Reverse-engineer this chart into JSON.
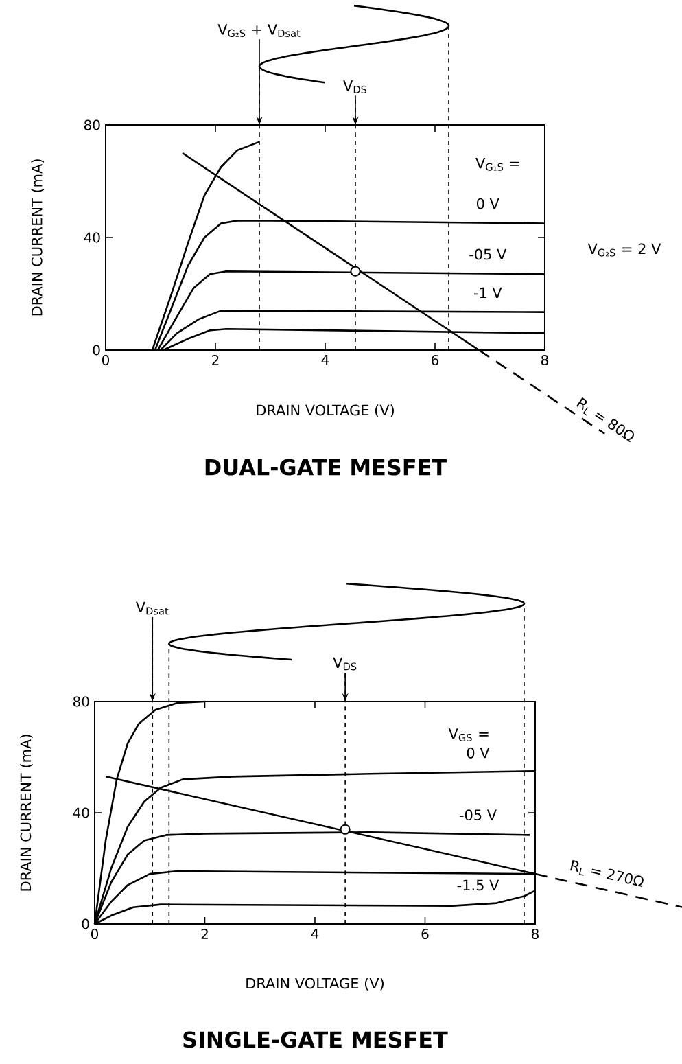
{
  "chart_data": [
    {
      "type": "line",
      "title": "DUAL-GATE MESFET",
      "xlabel": "DRAIN VOLTAGE (V)",
      "ylabel": "DRAIN CURRENT (mA)",
      "xlim": [
        0,
        8
      ],
      "ylim": [
        0,
        80
      ],
      "xticks": [
        0,
        2,
        4,
        6,
        8
      ],
      "yticks": [
        0,
        40,
        80
      ],
      "series": [
        {
          "color": "#000000",
          "x": [
            0.85,
            1.2,
            1.5,
            1.8,
            2.1,
            2.4,
            2.8
          ],
          "values": [
            0,
            20,
            38,
            55,
            65,
            71,
            74
          ]
        },
        {
          "name": "0 V",
          "color": "#000000",
          "x": [
            0.9,
            1.2,
            1.5,
            1.8,
            2.1,
            2.4,
            3,
            8
          ],
          "values": [
            0,
            15,
            30,
            40,
            45,
            46,
            46,
            45
          ]
        },
        {
          "name": "-05 V",
          "color": "#000000",
          "x": [
            0.95,
            1.3,
            1.6,
            1.9,
            2.2,
            8
          ],
          "values": [
            0,
            12,
            22,
            27,
            28,
            27
          ]
        },
        {
          "name": "-1 V",
          "color": "#000000",
          "x": [
            1.0,
            1.3,
            1.7,
            2.1,
            8
          ],
          "values": [
            0,
            6,
            11,
            14,
            13.5
          ]
        },
        {
          "color": "#000000",
          "x": [
            1.05,
            1.5,
            1.9,
            2.2,
            8
          ],
          "values": [
            0,
            4,
            7,
            7.5,
            6
          ]
        },
        {
          "color": "#000000",
          "x": [
            1.4,
            6.8
          ],
          "values": [
            70,
            0
          ]
        },
        {
          "type": "scatter",
          "marker": "circle",
          "color": "#000000",
          "x": [
            4.55
          ],
          "values": [
            28
          ]
        }
      ],
      "ref_lines": [
        {
          "axis": "x",
          "value": 2.8,
          "label": "V$_{G₂S}$ + V$_{Dsat}$",
          "line_style": "dashed"
        },
        {
          "axis": "x",
          "value": 4.55,
          "label": "V$_{DS}$",
          "line_style": "dashed"
        },
        {
          "axis": "x",
          "value": 6.25,
          "line_style": "dashed"
        }
      ],
      "annotations": [
        "V$_{G₁S}$ =",
        "V$_{G₂S}$ = 2 V",
        "R$_{L}$ = 80Ω"
      ]
    },
    {
      "type": "line",
      "title": "SINGLE-GATE MESFET",
      "xlabel": "DRAIN VOLTAGE (V)",
      "ylabel": "DRAIN CURRENT (mA)",
      "xlim": [
        0,
        8
      ],
      "ylim": [
        0,
        80
      ],
      "xticks": [
        0,
        2,
        4,
        6,
        8
      ],
      "yticks": [
        0,
        40,
        80
      ],
      "series": [
        {
          "color": "#000000",
          "x": [
            0,
            0.2,
            0.4,
            0.6,
            0.8,
            1.1,
            1.5,
            2
          ],
          "values": [
            0,
            30,
            52,
            65,
            72,
            77,
            79.5,
            80
          ]
        },
        {
          "name": "0 V",
          "color": "#000000",
          "x": [
            0,
            0.3,
            0.6,
            0.9,
            1.2,
            1.6,
            2.5,
            5,
            8
          ],
          "values": [
            0,
            20,
            35,
            44,
            49,
            52,
            53,
            54,
            55
          ]
        },
        {
          "name": "-05 V",
          "color": "#000000",
          "x": [
            0,
            0.3,
            0.6,
            0.9,
            1.3,
            2,
            5,
            7.9
          ],
          "values": [
            0,
            15,
            25,
            30,
            32,
            32.5,
            33,
            32
          ]
        },
        {
          "color": "#000000",
          "x": [
            0,
            0.3,
            0.6,
            1,
            1.5,
            8
          ],
          "values": [
            0,
            8,
            14,
            18,
            19,
            18
          ]
        },
        {
          "name": "-1.5 V",
          "color": "#000000",
          "x": [
            0,
            0.3,
            0.7,
            1.2,
            6.5,
            7.3,
            7.8,
            8
          ],
          "values": [
            0,
            3,
            6,
            7,
            6.5,
            7.5,
            10,
            12
          ]
        },
        {
          "color": "#000000",
          "x": [
            0.2,
            8
          ],
          "values": [
            53,
            18
          ]
        },
        {
          "type": "scatter",
          "marker": "circle",
          "color": "#000000",
          "x": [
            4.55
          ],
          "values": [
            34
          ]
        }
      ],
      "ref_lines": [
        {
          "axis": "x",
          "value": 1.05,
          "label": "V$_{Dsat}$",
          "line_style": "dashed"
        },
        {
          "axis": "x",
          "value": 1.35,
          "line_style": "dashed"
        },
        {
          "axis": "x",
          "value": 4.55,
          "label": "V$_{DS}$",
          "line_style": "dashed"
        },
        {
          "axis": "x",
          "value": 7.8,
          "line_style": "dashed"
        }
      ],
      "annotations": [
        "V$_{GS}$ =",
        "R$_{L}$ = 270Ω"
      ]
    }
  ]
}
